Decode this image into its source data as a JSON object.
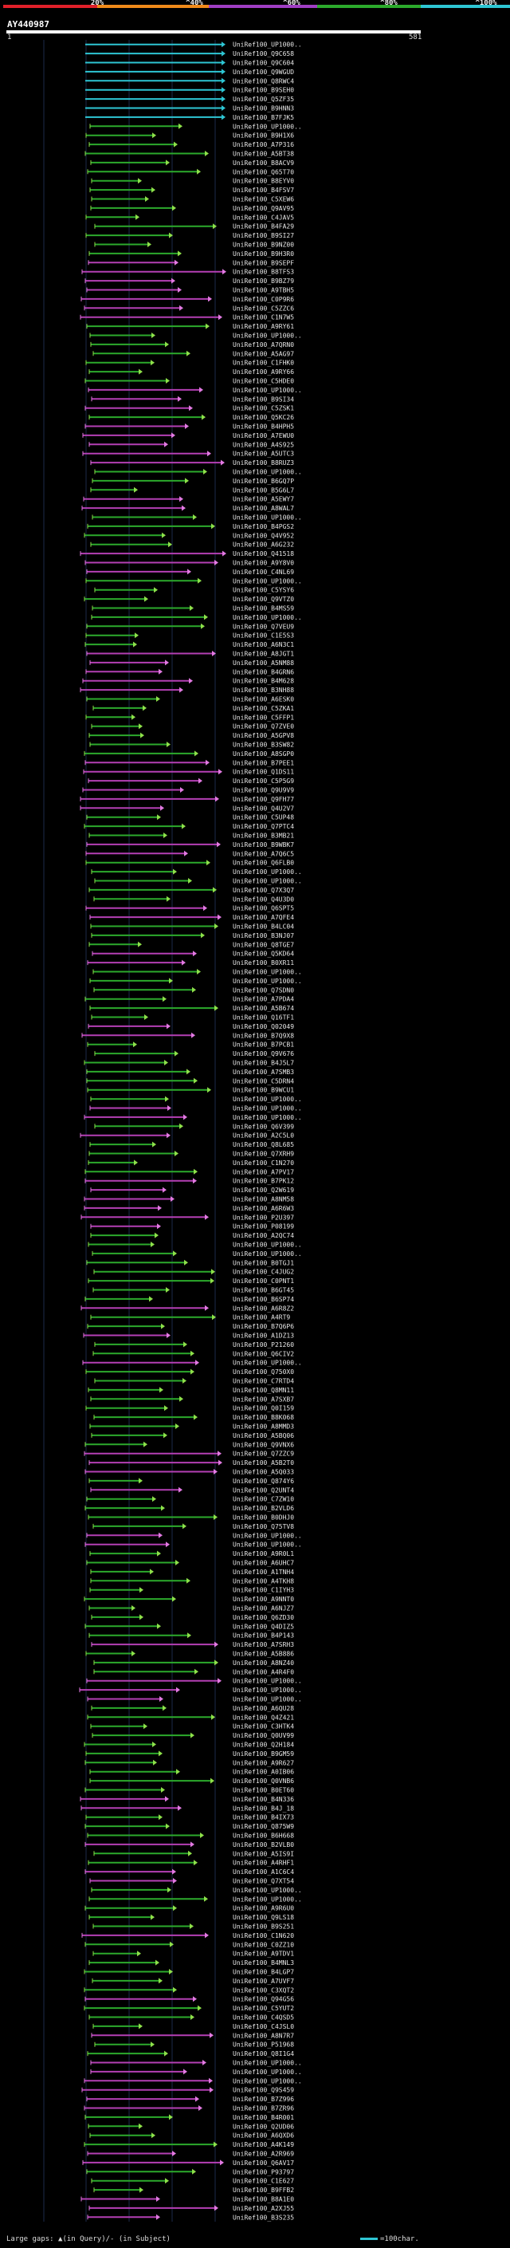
{
  "legend": {
    "segments": [
      {
        "color": "#e0202a",
        "label": "20%"
      },
      {
        "color": "#f08a1a",
        "label": "^40%"
      },
      {
        "color": "#a03fc4",
        "label": "^60%"
      },
      {
        "color": "#2caa2c",
        "label": "^80%"
      },
      {
        "color": "#2ec6d4",
        "label": "^100%"
      }
    ]
  },
  "query": {
    "id": "AY440987",
    "start": "1",
    "end": "581"
  },
  "footer": {
    "large_gaps": "Large gaps: ▲(in Query)/- (in Subject)",
    "scale": "=100char."
  },
  "colors": {
    "cyan": "#2ec6d4",
    "green": "#2caa2c",
    "magenta": "#b43fb4",
    "exon": "#8ee04a",
    "pink": "#e27ae2"
  },
  "hits": [
    {
      "label": "UniRef100_UP1000..",
      "color": "cyan"
    },
    {
      "label": "UniRef100_Q9C658",
      "color": "cyan"
    },
    {
      "label": "UniRef100_Q9C604",
      "color": "cyan"
    },
    {
      "label": "UniRef100_Q9WGUD",
      "color": "cyan"
    },
    {
      "label": "UniRef100_Q8RWC4",
      "color": "cyan"
    },
    {
      "label": "UniRef100_B9SEH0",
      "color": "cyan"
    },
    {
      "label": "UniRef100_Q5ZF35",
      "color": "cyan"
    },
    {
      "label": "UniRef100_B9HNN3",
      "color": "cyan"
    },
    {
      "label": "UniRef100_B7FJK5",
      "color": "cyan"
    },
    {
      "label": "UniRef100_UP1000..",
      "color": "green"
    },
    {
      "label": "UniRef100_B9H1X6",
      "color": "green"
    },
    {
      "label": "UniRef100_A7P316",
      "color": "green"
    },
    {
      "label": "UniRef100_A5BT38",
      "color": "green"
    },
    {
      "label": "UniRef100_B8ACV9",
      "color": "green"
    },
    {
      "label": "UniRef100_Q65T70",
      "color": "green"
    },
    {
      "label": "UniRef100_B8EYV0",
      "color": "green"
    },
    {
      "label": "UniRef100_B4FSV7",
      "color": "green"
    },
    {
      "label": "UniRef100_C5XEW6",
      "color": "green"
    },
    {
      "label": "UniRef100_Q9AV95",
      "color": "green"
    },
    {
      "label": "UniRef100_C4JAV5",
      "color": "green"
    },
    {
      "label": "UniRef100_B4FA29",
      "color": "green"
    },
    {
      "label": "UniRef100_B9SI27",
      "color": "green"
    },
    {
      "label": "UniRef100_B9NZ00",
      "color": "green"
    },
    {
      "label": "UniRef100_B9H3R0",
      "color": "green"
    },
    {
      "label": "UniRef100_B9SEPF",
      "color": "magenta"
    },
    {
      "label": "UniRef100_B8TFS3",
      "color": "magenta"
    },
    {
      "label": "UniRef100_B9BZ79",
      "color": "magenta"
    },
    {
      "label": "UniRef100_A9TBH5",
      "color": "magenta"
    },
    {
      "label": "UniRef100_C0P9R6",
      "color": "magenta"
    },
    {
      "label": "UniRef100_C5ZZC6",
      "color": "magenta"
    },
    {
      "label": "UniRef100_C1N7W5",
      "color": "magenta"
    },
    {
      "label": "UniRef100_A9RY61",
      "color": "green"
    },
    {
      "label": "UniRef100_UP1000..",
      "color": "green"
    },
    {
      "label": "UniRef100_A7QRN0",
      "color": "green"
    },
    {
      "label": "UniRef100_A5AG97",
      "color": "green"
    },
    {
      "label": "UniRef100_C1FHK0",
      "color": "green"
    },
    {
      "label": "UniRef100_A9RY66",
      "color": "green"
    },
    {
      "label": "UniRef100_C5HDE0",
      "color": "green"
    },
    {
      "label": "UniRef100_UP1000..",
      "color": "magenta"
    },
    {
      "label": "UniRef100_B9SI34",
      "color": "magenta"
    },
    {
      "label": "UniRef100_C5ZSK1",
      "color": "magenta"
    },
    {
      "label": "UniRef100_Q5KC26",
      "color": "green"
    },
    {
      "label": "UniRef100_B4HPH5",
      "color": "magenta"
    },
    {
      "label": "UniRef100_A7EWU0",
      "color": "magenta"
    },
    {
      "label": "UniRef100_A4S925",
      "color": "magenta"
    },
    {
      "label": "UniRef100_A5UTC3",
      "color": "magenta"
    },
    {
      "label": "UniRef100_B8RUZ3",
      "color": "magenta"
    },
    {
      "label": "UniRef100_UP1000..",
      "color": "green"
    },
    {
      "label": "UniRef100_B6GQ7P",
      "color": "green"
    },
    {
      "label": "UniRef100_B5G6L7",
      "color": "green"
    },
    {
      "label": "UniRef100_A5EWY7",
      "color": "magenta"
    },
    {
      "label": "UniRef100_A8WAL7",
      "color": "magenta"
    },
    {
      "label": "UniRef100_UP1000..",
      "color": "green"
    },
    {
      "label": "UniRef100_B4PGS2",
      "color": "green"
    },
    {
      "label": "UniRef100_Q4V952",
      "color": "green"
    },
    {
      "label": "UniRef100_A6G232",
      "color": "green"
    },
    {
      "label": "UniRef100_Q41518",
      "color": "magenta"
    },
    {
      "label": "UniRef100_A9Y8V0",
      "color": "magenta"
    },
    {
      "label": "UniRef100_C4NL69",
      "color": "magenta"
    },
    {
      "label": "UniRef100_UP1000..",
      "color": "green"
    },
    {
      "label": "UniRef100_C5YSY6",
      "color": "green"
    },
    {
      "label": "UniRef100_Q9VTZ0",
      "color": "green"
    },
    {
      "label": "UniRef100_B4MS59",
      "color": "green"
    },
    {
      "label": "UniRef100_UP1000..",
      "color": "green"
    },
    {
      "label": "UniRef100_Q7VEU9",
      "color": "green"
    },
    {
      "label": "UniRef100_C1E5S3",
      "color": "green"
    },
    {
      "label": "UniRef100_A6N3C1",
      "color": "green"
    },
    {
      "label": "UniRef100_A8JGT1",
      "color": "magenta"
    },
    {
      "label": "UniRef100_A5NM88",
      "color": "magenta"
    },
    {
      "label": "UniRef100_B4GRN6",
      "color": "magenta"
    },
    {
      "label": "UniRef100_B4M628",
      "color": "magenta"
    },
    {
      "label": "UniRef100_B3NH88",
      "color": "magenta"
    },
    {
      "label": "UniRef100_A6ESK0",
      "color": "green"
    },
    {
      "label": "UniRef100_C5ZKA1",
      "color": "green"
    },
    {
      "label": "UniRef100_C5FFP1",
      "color": "green"
    },
    {
      "label": "UniRef100_Q7ZVE0",
      "color": "green"
    },
    {
      "label": "UniRef100_A5GPV8",
      "color": "green"
    },
    {
      "label": "UniRef100_B3SW82",
      "color": "green"
    },
    {
      "label": "UniRef100_A8SGP0",
      "color": "green"
    },
    {
      "label": "UniRef100_B7PEE1",
      "color": "magenta"
    },
    {
      "label": "UniRef100_Q1DS11",
      "color": "magenta"
    },
    {
      "label": "UniRef100_C5P5G9",
      "color": "magenta"
    },
    {
      "label": "UniRef100_Q9U9V9",
      "color": "magenta"
    },
    {
      "label": "UniRef100_Q9FH77",
      "color": "magenta"
    },
    {
      "label": "UniRef100_Q4U2V7",
      "color": "magenta"
    },
    {
      "label": "UniRef100_C5UP48",
      "color": "green"
    },
    {
      "label": "UniRef100_Q7PTC4",
      "color": "green"
    },
    {
      "label": "UniRef100_B3MB21",
      "color": "green"
    },
    {
      "label": "UniRef100_B9WBK7",
      "color": "magenta"
    },
    {
      "label": "UniRef100_A7Q6C5",
      "color": "magenta"
    },
    {
      "label": "UniRef100_Q6FLB0",
      "color": "green"
    },
    {
      "label": "UniRef100_UP1000..",
      "color": "green"
    },
    {
      "label": "UniRef100_UP1000..",
      "color": "green"
    },
    {
      "label": "UniRef100_Q7X3Q7",
      "color": "green"
    },
    {
      "label": "UniRef100_Q4U3D0",
      "color": "green"
    },
    {
      "label": "UniRef100_Q6SPT5",
      "color": "magenta"
    },
    {
      "label": "UniRef100_A7QFE4",
      "color": "magenta"
    },
    {
      "label": "UniRef100_B4LC04",
      "color": "green"
    },
    {
      "label": "UniRef100_B3NJ07",
      "color": "green"
    },
    {
      "label": "UniRef100_Q8TGE7",
      "color": "green"
    },
    {
      "label": "UniRef100_Q5KD64",
      "color": "magenta"
    },
    {
      "label": "UniRef100_B0XR11",
      "color": "magenta"
    },
    {
      "label": "UniRef100_UP1000..",
      "color": "green"
    },
    {
      "label": "UniRef100_UP1000..",
      "color": "green"
    },
    {
      "label": "UniRef100_Q7SDN0",
      "color": "green"
    },
    {
      "label": "UniRef100_A7PDA4",
      "color": "green"
    },
    {
      "label": "UniRef100_A5B674",
      "color": "green"
    },
    {
      "label": "UniRef100_Q16TF1",
      "color": "green"
    },
    {
      "label": "UniRef100_Q02049",
      "color": "magenta"
    },
    {
      "label": "UniRef100_B7Q9X8",
      "color": "magenta"
    },
    {
      "label": "UniRef100_B7PCB1",
      "color": "green"
    },
    {
      "label": "UniRef100_Q9V676",
      "color": "green"
    },
    {
      "label": "UniRef100_B4J5L7",
      "color": "green"
    },
    {
      "label": "UniRef100_A7SMB3",
      "color": "green"
    },
    {
      "label": "UniRef100_C5DRN4",
      "color": "green"
    },
    {
      "label": "UniRef100_B9WCU1",
      "color": "green"
    },
    {
      "label": "UniRef100_UP1000..",
      "color": "green"
    },
    {
      "label": "UniRef100_UP1000..",
      "color": "magenta"
    },
    {
      "label": "UniRef100_UP1000..",
      "color": "magenta"
    },
    {
      "label": "UniRef100_Q6V399",
      "color": "green"
    },
    {
      "label": "UniRef100_A2C5L0",
      "color": "magenta"
    },
    {
      "label": "UniRef100_Q8L685",
      "color": "green"
    },
    {
      "label": "UniRef100_Q7XRH9",
      "color": "green"
    },
    {
      "label": "UniRef100_C1N270",
      "color": "green"
    },
    {
      "label": "UniRef100_A7PV17",
      "color": "green"
    },
    {
      "label": "UniRef100_B7PK12",
      "color": "magenta"
    },
    {
      "label": "UniRef100_Q2W619",
      "color": "magenta"
    },
    {
      "label": "UniRef100_A8NM58",
      "color": "magenta"
    },
    {
      "label": "UniRef100_A6R6W3",
      "color": "magenta"
    },
    {
      "label": "UniRef100_P2U397",
      "color": "magenta"
    },
    {
      "label": "UniRef100_P08199",
      "color": "magenta"
    },
    {
      "label": "UniRef100_A2QC74",
      "color": "green"
    },
    {
      "label": "UniRef100_UP1000..",
      "color": "green"
    },
    {
      "label": "UniRef100_UP1000..",
      "color": "green"
    },
    {
      "label": "UniRef100_B0TGJ1",
      "color": "green"
    },
    {
      "label": "UniRef100_C4JUG2",
      "color": "green"
    },
    {
      "label": "UniRef100_C0PNT1",
      "color": "green"
    },
    {
      "label": "UniRef100_B6GT45",
      "color": "green"
    },
    {
      "label": "UniRef100_B6SP74",
      "color": "green"
    },
    {
      "label": "UniRef100_A6R8Z2",
      "color": "magenta"
    },
    {
      "label": "UniRef100_A4RT9",
      "color": "green"
    },
    {
      "label": "UniRef100_B7Q6P6",
      "color": "green"
    },
    {
      "label": "UniRef100_A1DZ13",
      "color": "magenta"
    },
    {
      "label": "UniRef100_P21260",
      "color": "green"
    },
    {
      "label": "UniRef100_Q6CIV2",
      "color": "green"
    },
    {
      "label": "UniRef100_UP1000..",
      "color": "magenta"
    },
    {
      "label": "UniRef100_Q750X0",
      "color": "green"
    },
    {
      "label": "UniRef100_C7RTD4",
      "color": "green"
    },
    {
      "label": "UniRef100_Q8MN11",
      "color": "green"
    },
    {
      "label": "UniRef100_A7SXB7",
      "color": "green"
    },
    {
      "label": "UniRef100_Q0I159",
      "color": "green"
    },
    {
      "label": "UniRef100_B8K068",
      "color": "green"
    },
    {
      "label": "UniRef100_A8MMD3",
      "color": "green"
    },
    {
      "label": "UniRef100_A5BQ06",
      "color": "green"
    },
    {
      "label": "UniRef100_Q9VNX6",
      "color": "green"
    },
    {
      "label": "UniRef100_Q7ZZC9",
      "color": "magenta"
    },
    {
      "label": "UniRef100_A5B2T0",
      "color": "magenta"
    },
    {
      "label": "UniRef100_A5Q033",
      "color": "magenta"
    },
    {
      "label": "UniRef100_Q874Y6",
      "color": "green"
    },
    {
      "label": "UniRef100_Q2UNT4",
      "color": "magenta"
    },
    {
      "label": "UniRef100_C7ZW10",
      "color": "green"
    },
    {
      "label": "UniRef100_B2VLD6",
      "color": "green"
    },
    {
      "label": "UniRef100_B0DHJ0",
      "color": "green"
    },
    {
      "label": "UniRef100_Q75TV8",
      "color": "green"
    },
    {
      "label": "UniRef100_UP1000..",
      "color": "magenta"
    },
    {
      "label": "UniRef100_UP1000..",
      "color": "magenta"
    },
    {
      "label": "UniRef100_A9R0L1",
      "color": "green"
    },
    {
      "label": "UniRef100_A6UHC7",
      "color": "green"
    },
    {
      "label": "UniRef100_A1TNH4",
      "color": "green"
    },
    {
      "label": "UniRef100_A4TKH8",
      "color": "green"
    },
    {
      "label": "UniRef100_C1IYH3",
      "color": "green"
    },
    {
      "label": "UniRef100_A9NNT0",
      "color": "green"
    },
    {
      "label": "UniRef100_A6NJZ7",
      "color": "green"
    },
    {
      "label": "UniRef100_Q6ZD30",
      "color": "green"
    },
    {
      "label": "UniRef100_Q4DIZ5",
      "color": "green"
    },
    {
      "label": "UniRef100_B4P143",
      "color": "green"
    },
    {
      "label": "UniRef100_A7SRH3",
      "color": "magenta"
    },
    {
      "label": "UniRef100_A5B886",
      "color": "green"
    },
    {
      "label": "UniRef100_A8NZ40",
      "color": "green"
    },
    {
      "label": "UniRef100_A4R4F0",
      "color": "green"
    },
    {
      "label": "UniRef100_UP1000..",
      "color": "magenta"
    },
    {
      "label": "UniRef100_UP1000..",
      "color": "magenta"
    },
    {
      "label": "UniRef100_UP1000..",
      "color": "magenta"
    },
    {
      "label": "UniRef100_A6QU28",
      "color": "green"
    },
    {
      "label": "UniRef100_Q4Z421",
      "color": "green"
    },
    {
      "label": "UniRef100_C3HTK4",
      "color": "green"
    },
    {
      "label": "UniRef100_Q0UV99",
      "color": "green"
    },
    {
      "label": "UniRef100_Q2H184",
      "color": "green"
    },
    {
      "label": "UniRef100_B9GM59",
      "color": "green"
    },
    {
      "label": "UniRef100_A9R627",
      "color": "green"
    },
    {
      "label": "UniRef100_A0IB06",
      "color": "green"
    },
    {
      "label": "UniRef100_Q0VNB6",
      "color": "green"
    },
    {
      "label": "UniRef100_B0ET60",
      "color": "green"
    },
    {
      "label": "UniRef100_B4N336",
      "color": "magenta"
    },
    {
      "label": "UniRef100_B4J_18",
      "color": "magenta"
    },
    {
      "label": "UniRef100_B4IX73",
      "color": "green"
    },
    {
      "label": "UniRef100_Q875W9",
      "color": "green"
    },
    {
      "label": "UniRef100_B6H668",
      "color": "green"
    },
    {
      "label": "UniRef100_B2VLB0",
      "color": "magenta"
    },
    {
      "label": "UniRef100_A5IS9I",
      "color": "green"
    },
    {
      "label": "UniRef100_A4RHF1",
      "color": "green"
    },
    {
      "label": "UniRef100_A1C6C4",
      "color": "magenta"
    },
    {
      "label": "UniRef100_Q7XT54",
      "color": "magenta"
    },
    {
      "label": "UniRef100_UP1000..",
      "color": "green"
    },
    {
      "label": "UniRef100_UP1000..",
      "color": "green"
    },
    {
      "label": "UniRef100_A9R6U0",
      "color": "green"
    },
    {
      "label": "UniRef100_Q9LS18",
      "color": "green"
    },
    {
      "label": "UniRef100_B9S251",
      "color": "green"
    },
    {
      "label": "UniRef100_C1N620",
      "color": "magenta"
    },
    {
      "label": "UniRef100_C0ZZ10",
      "color": "green"
    },
    {
      "label": "UniRef100_A9TDV1",
      "color": "green"
    },
    {
      "label": "UniRef100_B4MNL3",
      "color": "green"
    },
    {
      "label": "UniRef100_B4LGP7",
      "color": "green"
    },
    {
      "label": "UniRef100_A7UVF7",
      "color": "green"
    },
    {
      "label": "UniRef100_C3XQT2",
      "color": "green"
    },
    {
      "label": "UniRef100_Q94G56",
      "color": "magenta"
    },
    {
      "label": "UniRef100_C5YUT2",
      "color": "green"
    },
    {
      "label": "UniRef100_C4QSD5",
      "color": "green"
    },
    {
      "label": "UniRef100_C4JSL0",
      "color": "green"
    },
    {
      "label": "UniRef100_A8N7R7",
      "color": "magenta"
    },
    {
      "label": "UniRef100_P51968",
      "color": "green"
    },
    {
      "label": "UniRef100_Q8I1G4",
      "color": "green"
    },
    {
      "label": "UniRef100_UP1000..",
      "color": "magenta"
    },
    {
      "label": "UniRef100_UP1000..",
      "color": "magenta"
    },
    {
      "label": "UniRef100_UP1000..",
      "color": "magenta"
    },
    {
      "label": "UniRef100_Q9S459",
      "color": "magenta"
    },
    {
      "label": "UniRef100_B7Z996",
      "color": "magenta"
    },
    {
      "label": "UniRef100_B7ZR96",
      "color": "magenta"
    },
    {
      "label": "UniRef100_B4R001",
      "color": "green"
    },
    {
      "label": "UniRef100_Q2UD06",
      "color": "green"
    },
    {
      "label": "UniRef100_A6QXD6",
      "color": "green"
    },
    {
      "label": "UniRef100_A4K149",
      "color": "green"
    },
    {
      "label": "UniRef100_A2R969",
      "color": "magenta"
    },
    {
      "label": "UniRef100_Q6AV17",
      "color": "magenta"
    },
    {
      "label": "UniRef100_P93797",
      "color": "green"
    },
    {
      "label": "UniRef100_C1E627",
      "color": "green"
    },
    {
      "label": "UniRef100_B9FFB2",
      "color": "green"
    },
    {
      "label": "UniRef100_B8A1E0",
      "color": "magenta"
    },
    {
      "label": "UniRef100_A2XJ55",
      "color": "magenta"
    },
    {
      "label": "UniRef100_B3S235",
      "color": "magenta"
    }
  ]
}
